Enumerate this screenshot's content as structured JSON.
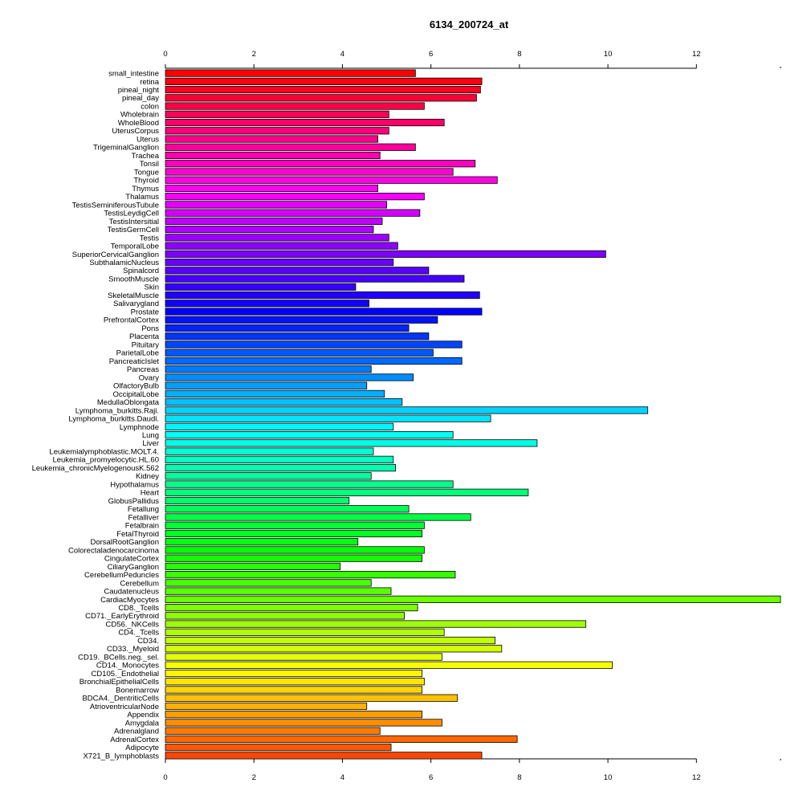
{
  "chart_data": {
    "type": "bar",
    "orientation": "horizontal",
    "title": "6134_200724_at",
    "xlabel": "",
    "ylabel": "",
    "xlim": [
      0,
      13.9
    ],
    "xticks": [
      0,
      2,
      4,
      6,
      8,
      10,
      12
    ],
    "xtick_labels": [
      "0",
      "2",
      "4",
      "6",
      "8",
      "10",
      "12"
    ],
    "axes": [
      "top",
      "bottom"
    ],
    "grid": false,
    "legend": "none",
    "bar_colors": "rainbow gradient from red (first category) through magenta, blue, cyan, green, yellow back to red (last category)",
    "categories": [
      "small_intestine",
      "retina",
      "pineal_night",
      "pineal_day",
      "colon",
      "Wholebrain",
      "WholeBlood",
      "UterusCorpus",
      "Uterus",
      "TrigeminalGanglion",
      "Trachea",
      "Tonsil",
      "Tongue",
      "Thyroid",
      "Thymus",
      "Thalamus",
      "TestisSeminiferousTubule",
      "TestisLeydigCell",
      "TestisIntersitial",
      "TestisGermCell",
      "Testis",
      "TemporalLobe",
      "SuperiorCervicalGanglion",
      "SubthalamicNucleus",
      "Spinalcord",
      "SmoothMuscle",
      "Skin",
      "SkeletalMuscle",
      "Salivarygland",
      "Prostate",
      "PrefrontalCortex",
      "Pons",
      "Placenta",
      "Pituitary",
      "ParietalLobe",
      "PancreaticIslet",
      "Pancreas",
      "Ovary",
      "OlfactoryBulb",
      "OccipitalLobe",
      "MedullaOblongata",
      "Lymphoma_burkitts.Raji.",
      "Lymphoma_burkitts.Daudi.",
      "Lymphnode",
      "Lung",
      "Liver",
      "Leukemialymphoblastic.MOLT.4.",
      "Leukemia_promyelocytic.HL.60",
      "Leukemia_chronicMyelogenousK.562",
      "Kidney",
      "Hypothalamus",
      "Heart",
      "GlobusPallidus",
      "Fetallung",
      "Fetalliver",
      "Fetalbrain",
      "FetalThyroid",
      "DorsalRootGanglion",
      "Colorectaladenocarcinoma",
      "CingulateCortex",
      "CiliaryGanglion",
      "CerebellumPeduncles",
      "Cerebellum",
      "Caudatenucleus",
      "CardiacMyocytes",
      "CD8._Tcells",
      "CD71._EarlyErythroid",
      "CD56._NKCells",
      "CD4._Tcells",
      "CD34.",
      "CD33._Myeloid",
      "CD19._BCells.neg._sel.",
      "CD14._Monocytes",
      "CD105._Endothelial",
      "BronchialEpithelialCells",
      "Bonemarrow",
      "BDCA4._DentriticCells",
      "AtrioventricularNode",
      "Appendix",
      "Amygdala",
      "Adrenalgland",
      "AdrenalCortex",
      "Adipocyte",
      "X721_B_lymphoblasts"
    ],
    "values": [
      5.65,
      7.15,
      7.12,
      7.03,
      5.85,
      5.05,
      6.3,
      5.05,
      4.8,
      5.65,
      4.85,
      7.0,
      6.5,
      7.5,
      4.8,
      5.85,
      5.0,
      5.75,
      4.9,
      4.7,
      5.05,
      5.25,
      9.95,
      5.15,
      5.95,
      6.75,
      4.3,
      7.1,
      4.6,
      7.15,
      6.15,
      5.5,
      5.95,
      6.7,
      6.05,
      6.7,
      4.65,
      5.6,
      4.55,
      4.95,
      5.35,
      10.9,
      7.35,
      5.15,
      6.5,
      8.4,
      4.7,
      5.15,
      5.2,
      4.65,
      6.5,
      8.2,
      4.15,
      5.5,
      6.9,
      5.85,
      5.8,
      4.35,
      5.85,
      5.8,
      3.95,
      6.55,
      4.65,
      5.1,
      13.9,
      5.7,
      5.4,
      9.5,
      6.3,
      7.45,
      7.6,
      6.25,
      10.1,
      5.8,
      5.85,
      5.8,
      6.6,
      4.55,
      5.8,
      6.25,
      4.85,
      7.95,
      5.1,
      7.15
    ]
  }
}
